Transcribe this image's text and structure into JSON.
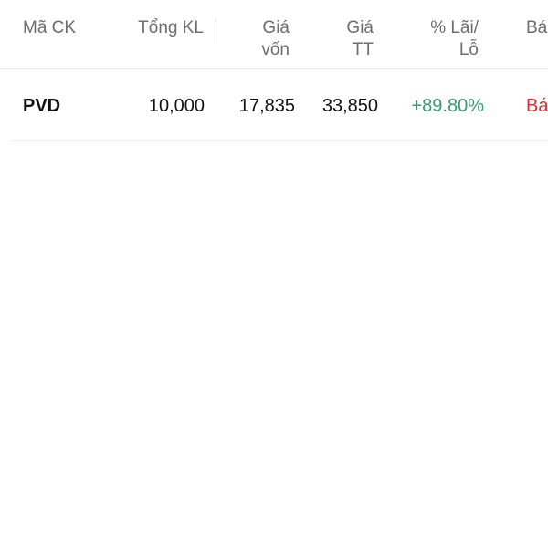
{
  "table": {
    "headers": [
      {
        "line1": "Mã CK",
        "line2": ""
      },
      {
        "line1": "Tổng KL",
        "line2": ""
      },
      {
        "line1": "Giá",
        "line2": "vốn"
      },
      {
        "line1": "Giá",
        "line2": "TT"
      },
      {
        "line1": "% Lãi/",
        "line2": "Lỗ"
      },
      {
        "line1": "Bá",
        "line2": ""
      }
    ],
    "rows": [
      {
        "symbol": "PVD",
        "total_volume": "10,000",
        "cost_price": "17,835",
        "market_price": "33,850",
        "pnl_percent": "+89.80%",
        "action": "Bá"
      }
    ]
  },
  "colors": {
    "positive": "#3a9a6e",
    "sell": "#d9302f",
    "header_text": "#6e6e6e"
  }
}
